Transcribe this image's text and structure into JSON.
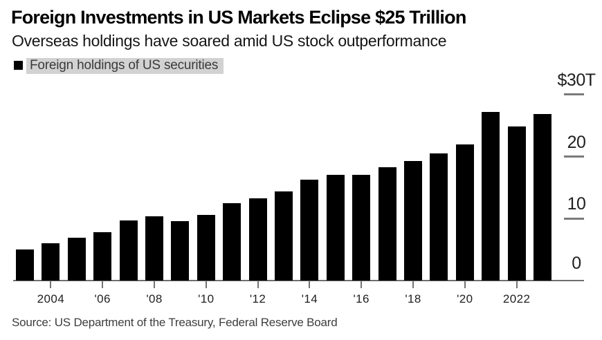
{
  "header": {
    "title": "Foreign Investments in US Markets Eclipse $25 Trillion",
    "subtitle": "Overseas holdings have soared amid US stock outperformance"
  },
  "legend": {
    "label": "Foreign holdings of US securities",
    "swatch_color": "#000000",
    "highlight_color": "#d2d2d2"
  },
  "footer": {
    "source": "Source: US Department of the Treasury, Federal Reserve Board"
  },
  "chart_data": {
    "type": "bar",
    "title": "Foreign Investments in US Markets Eclipse $25 Trillion",
    "subtitle": "Overseas holdings have soared amid US stock outperformance",
    "series_name": "Foreign holdings of US securities",
    "unit": "USD trillions",
    "categories": [
      "2003",
      "2004",
      "2005",
      "2006",
      "2007",
      "2008",
      "2009",
      "2010",
      "2011",
      "2012",
      "2013",
      "2014",
      "2015",
      "2016",
      "2017",
      "2018",
      "2019",
      "2020",
      "2021",
      "2022",
      "2023"
    ],
    "values": [
      5.0,
      6.0,
      6.9,
      7.8,
      9.7,
      10.4,
      9.6,
      10.6,
      12.5,
      13.3,
      14.4,
      16.3,
      17.1,
      17.1,
      18.3,
      19.3,
      20.5,
      22.0,
      27.2,
      24.9,
      26.9
    ],
    "x_tick_labels": [
      "2004",
      "'06",
      "'08",
      "'10",
      "'12",
      "'14",
      "'16",
      "'18",
      "'20",
      "2022"
    ],
    "x_tick_category_indexes": [
      1,
      3,
      5,
      7,
      9,
      11,
      13,
      15,
      17,
      19
    ],
    "ylim": [
      0,
      30
    ],
    "y_ticks": [
      0,
      10,
      20,
      30
    ],
    "y_tick_labels": [
      "0",
      "10",
      "20",
      "$30T"
    ],
    "bar_color": "#000000",
    "axis_color": "#737373",
    "grid": "short right-side tick dashes only",
    "legend_position": "top-left"
  }
}
